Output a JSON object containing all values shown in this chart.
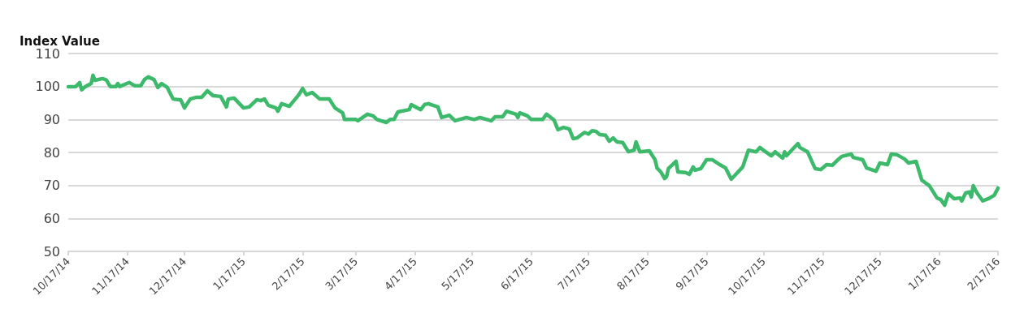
{
  "chart_data": {
    "type": "line",
    "ylabel": "Index Value",
    "x": [
      "2014-10-17",
      "2014-10-21",
      "2014-10-23",
      "2014-10-24",
      "2014-10-26",
      "2014-10-29",
      "2014-10-30",
      "2014-10-31",
      "2014-11-04",
      "2014-11-06",
      "2014-11-08",
      "2014-11-11",
      "2014-11-12",
      "2014-11-13",
      "2014-11-18",
      "2014-11-21",
      "2014-11-24",
      "2014-11-26",
      "2014-11-28",
      "2014-12-01",
      "2014-12-03",
      "2014-12-05",
      "2014-12-08",
      "2014-12-11",
      "2014-12-14",
      "2014-12-15",
      "2014-12-17",
      "2014-12-20",
      "2014-12-23",
      "2014-12-26",
      "2014-12-29",
      "2015-01-01",
      "2015-01-05",
      "2015-01-08",
      "2015-01-09",
      "2015-01-12",
      "2015-01-17",
      "2015-01-20",
      "2015-01-24",
      "2015-01-26",
      "2015-01-28",
      "2015-01-30",
      "2015-02-03",
      "2015-02-04",
      "2015-02-06",
      "2015-02-10",
      "2015-02-15",
      "2015-02-17",
      "2015-02-19",
      "2015-02-22",
      "2015-02-26",
      "2015-03-03",
      "2015-03-06",
      "2015-03-10",
      "2015-03-11",
      "2015-03-17",
      "2015-03-18",
      "2015-03-23",
      "2015-03-26",
      "2015-03-28",
      "2015-04-02",
      "2015-04-04",
      "2015-04-06",
      "2015-04-08",
      "2015-04-14",
      "2015-04-15",
      "2015-04-20",
      "2015-04-22",
      "2015-04-24",
      "2015-04-29",
      "2015-05-01",
      "2015-05-05",
      "2015-05-08",
      "2015-05-14",
      "2015-05-18",
      "2015-05-21",
      "2015-05-27",
      "2015-05-29",
      "2015-06-02",
      "2015-06-04",
      "2015-06-09",
      "2015-06-10",
      "2015-06-11",
      "2015-06-15",
      "2015-06-17",
      "2015-06-23",
      "2015-06-25",
      "2015-06-29",
      "2015-07-01",
      "2015-07-04",
      "2015-07-07",
      "2015-07-09",
      "2015-07-11",
      "2015-07-15",
      "2015-07-17",
      "2015-07-19",
      "2015-07-21",
      "2015-07-23",
      "2015-07-26",
      "2015-07-28",
      "2015-07-30",
      "2015-08-01",
      "2015-08-04",
      "2015-08-07",
      "2015-08-10",
      "2015-08-11",
      "2015-08-13",
      "2015-08-18",
      "2015-08-21",
      "2015-08-22",
      "2015-08-24",
      "2015-08-26",
      "2015-08-27",
      "2015-08-28",
      "2015-09-01",
      "2015-09-02",
      "2015-09-06",
      "2015-09-08",
      "2015-09-10",
      "2015-09-11",
      "2015-09-14",
      "2015-09-17",
      "2015-09-20",
      "2015-09-24",
      "2015-09-27",
      "2015-09-30",
      "2015-10-02",
      "2015-10-06",
      "2015-10-09",
      "2015-10-13",
      "2015-10-15",
      "2015-10-18",
      "2015-10-21",
      "2015-10-23",
      "2015-10-27",
      "2015-10-28",
      "2015-10-29",
      "2015-11-04",
      "2015-11-05",
      "2015-11-09",
      "2015-11-13",
      "2015-11-16",
      "2015-11-19",
      "2015-11-22",
      "2015-11-25",
      "2015-11-27",
      "2015-12-02",
      "2015-12-03",
      "2015-12-08",
      "2015-12-10",
      "2015-12-15",
      "2015-12-17",
      "2015-12-21",
      "2015-12-23",
      "2015-12-26",
      "2015-12-30",
      "2016-01-01",
      "2016-01-05",
      "2016-01-08",
      "2016-01-12",
      "2016-01-16",
      "2016-01-18",
      "2016-01-20",
      "2016-01-22",
      "2016-01-25",
      "2016-01-28",
      "2016-01-29",
      "2016-01-31",
      "2016-02-02",
      "2016-02-03",
      "2016-02-04",
      "2016-02-06",
      "2016-02-09",
      "2016-02-12",
      "2016-02-15",
      "2016-02-17"
    ],
    "series": [
      {
        "color": "#3cb96a",
        "values": [
          99.9,
          100,
          101.2,
          99,
          100,
          100.9,
          103.4,
          101.9,
          102.4,
          102,
          100,
          100,
          100.9,
          100,
          101.2,
          100.2,
          100.2,
          102.1,
          102.9,
          102.1,
          99.7,
          100.9,
          99.7,
          96.2,
          96,
          96,
          93.5,
          96.2,
          96.7,
          96.7,
          98.7,
          97.2,
          97,
          93.8,
          96.2,
          96.5,
          93.5,
          93.8,
          96,
          95.7,
          96.2,
          94.3,
          93.5,
          92.5,
          94.8,
          94,
          97.5,
          99.4,
          97.5,
          98.2,
          96.2,
          96.2,
          93.5,
          92,
          90,
          90,
          89.6,
          91.6,
          91.1,
          90,
          89.1,
          90,
          90,
          92.3,
          93,
          94.5,
          93,
          94.5,
          94.8,
          93.8,
          90.6,
          91.3,
          89.6,
          90.6,
          90,
          90.6,
          89.6,
          90.8,
          90.8,
          92.5,
          91.6,
          90.6,
          92,
          91.1,
          90,
          90,
          91.6,
          89.8,
          86.9,
          87.6,
          87.1,
          84.2,
          84.4,
          86.1,
          85.6,
          86.6,
          86.4,
          85.4,
          85.2,
          83.4,
          84.4,
          83.2,
          83,
          80.2,
          80.7,
          83.2,
          80.2,
          80.5,
          77.8,
          75.3,
          74.1,
          72.1,
          72.6,
          75.1,
          77.3,
          74.1,
          73.9,
          73.4,
          75.6,
          74.6,
          75.1,
          77.8,
          77.8,
          76.3,
          75.3,
          71.9,
          73.1,
          75.6,
          80.7,
          80.2,
          81.5,
          80.2,
          79,
          80.2,
          78.3,
          80.2,
          79,
          82.7,
          81.5,
          80.2,
          75.1,
          74.8,
          76.3,
          76.1,
          77.8,
          78.8,
          79.5,
          78.5,
          77.8,
          75.3,
          74.3,
          76.8,
          76.3,
          79.5,
          79.3,
          78,
          76.8,
          77.3,
          71.6,
          69.9,
          66.2,
          65.7,
          64,
          67.5,
          66,
          66.2,
          65.3,
          67.7,
          68,
          66.5,
          69.9,
          67.7,
          65.3,
          66,
          67,
          69.2
        ]
      }
    ],
    "xlim": [
      "2014-10-17",
      "2016-02-17"
    ],
    "xticks": [
      {
        "value": "2014-10-17",
        "label": "10/17/14"
      },
      {
        "value": "2014-11-17",
        "label": "11/17/14"
      },
      {
        "value": "2014-12-17",
        "label": "12/17/14"
      },
      {
        "value": "2015-01-17",
        "label": "1/17/15"
      },
      {
        "value": "2015-02-17",
        "label": "2/17/15"
      },
      {
        "value": "2015-03-17",
        "label": "3/17/15"
      },
      {
        "value": "2015-04-17",
        "label": "4/17/15"
      },
      {
        "value": "2015-05-17",
        "label": "5/17/15"
      },
      {
        "value": "2015-06-17",
        "label": "6/17/15"
      },
      {
        "value": "2015-07-17",
        "label": "7/17/15"
      },
      {
        "value": "2015-08-17",
        "label": "8/17/15"
      },
      {
        "value": "2015-09-17",
        "label": "9/17/15"
      },
      {
        "value": "2015-10-17",
        "label": "10/17/15"
      },
      {
        "value": "2015-11-17",
        "label": "11/17/15"
      },
      {
        "value": "2015-12-17",
        "label": "12/17/15"
      },
      {
        "value": "2016-01-17",
        "label": "1/17/16"
      },
      {
        "value": "2016-02-17",
        "label": "2/17/16"
      }
    ],
    "ylim": [
      50,
      110
    ],
    "yticks": [
      50,
      60,
      70,
      80,
      90,
      100,
      110
    ],
    "grid": "y",
    "marker": "none",
    "line_style": "solid"
  }
}
